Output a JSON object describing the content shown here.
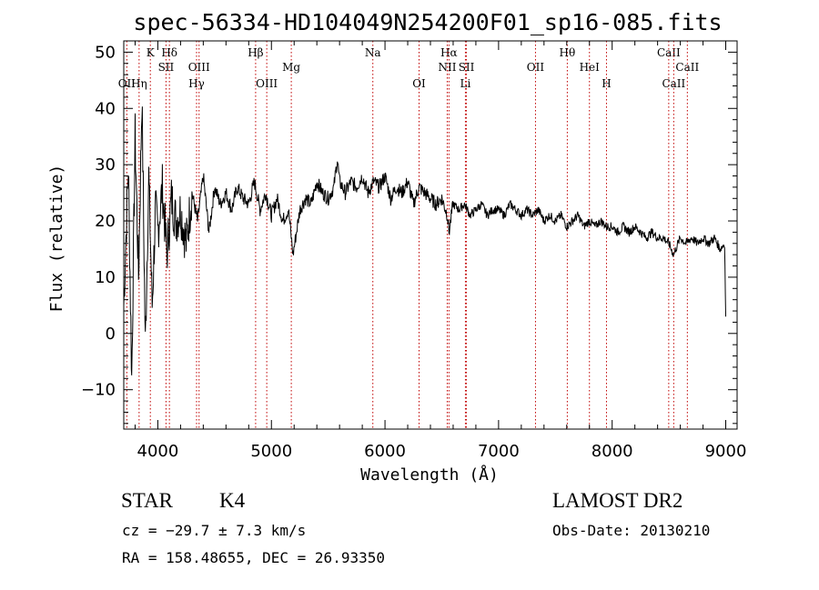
{
  "chart_data": {
    "type": "line",
    "title": "spec-56334-HD104049N254200F01_sp16-085.fits",
    "xlabel": "Wavelength (Å)",
    "ylabel": "Flux (relative)",
    "xlim": [
      3700,
      9100
    ],
    "ylim": [
      -17,
      52
    ],
    "xticks": [
      4000,
      5000,
      6000,
      7000,
      8000,
      9000
    ],
    "yticks": [
      -10,
      0,
      10,
      20,
      30,
      40,
      50
    ],
    "tick_labels_x": [
      "4000",
      "5000",
      "6000",
      "7000",
      "8000",
      "9000"
    ],
    "tick_labels_y": [
      "−10",
      "0",
      "10",
      "20",
      "30",
      "40",
      "50"
    ],
    "series": [
      {
        "name": "spectrum",
        "x": [
          3700,
          3740,
          3770,
          3800,
          3830,
          3860,
          3890,
          3920,
          3950,
          3980,
          4000,
          4040,
          4080,
          4120,
          4160,
          4200,
          4250,
          4300,
          4350,
          4400,
          4450,
          4500,
          4550,
          4600,
          4650,
          4700,
          4750,
          4800,
          4850,
          4900,
          4950,
          5000,
          5050,
          5100,
          5150,
          5190,
          5250,
          5300,
          5350,
          5400,
          5450,
          5500,
          5550,
          5580,
          5600,
          5650,
          5700,
          5750,
          5800,
          5850,
          5900,
          5950,
          6000,
          6050,
          6100,
          6150,
          6200,
          6250,
          6300,
          6350,
          6400,
          6450,
          6500,
          6550,
          6563,
          6600,
          6650,
          6700,
          6750,
          6800,
          6850,
          6900,
          6950,
          7000,
          7050,
          7100,
          7150,
          7200,
          7250,
          7300,
          7350,
          7400,
          7450,
          7500,
          7550,
          7600,
          7650,
          7700,
          7750,
          7800,
          7850,
          7900,
          7950,
          8000,
          8050,
          8100,
          8150,
          8200,
          8250,
          8300,
          8350,
          8400,
          8450,
          8500,
          8540,
          8600,
          8650,
          8700,
          8750,
          8800,
          8850,
          8900,
          8950,
          8990,
          9000
        ],
        "y": [
          5,
          30,
          -8,
          35,
          10,
          42,
          -2,
          28,
          5,
          22,
          18,
          26,
          14,
          24,
          20,
          22,
          16,
          25,
          20,
          28,
          18,
          26,
          23,
          25,
          22,
          26,
          24,
          23,
          27,
          22,
          25,
          21,
          24,
          20,
          22,
          14,
          22,
          24,
          23,
          27,
          25,
          24,
          26,
          31,
          27,
          25,
          27,
          26,
          28,
          25,
          27,
          26,
          28,
          24,
          26,
          25,
          27,
          23,
          26,
          25,
          24,
          23,
          24,
          21,
          18,
          23,
          22,
          23,
          21,
          22,
          23,
          21,
          22,
          22,
          21,
          23,
          22,
          21,
          22,
          21,
          22,
          20,
          21,
          20,
          21,
          19,
          20,
          21,
          19,
          20,
          19,
          20,
          19,
          19,
          18,
          19,
          18,
          19,
          18,
          17,
          18,
          17,
          17,
          16,
          14,
          17,
          16,
          17,
          16,
          17,
          16,
          17,
          15,
          16,
          3
        ]
      }
    ],
    "spectral_lines": [
      {
        "label": "OII",
        "wavelength": 3727,
        "row": 3
      },
      {
        "label": "Hη",
        "wavelength": 3835,
        "row": 3
      },
      {
        "label": "K",
        "wavelength": 3934,
        "row": 1
      },
      {
        "label": "Hδ",
        "wavelength": 4102,
        "row": 1
      },
      {
        "label": "SII",
        "wavelength": 4072,
        "row": 2
      },
      {
        "label": "OIII",
        "wavelength": 4363,
        "row": 2
      },
      {
        "label": "Hγ",
        "wavelength": 4341,
        "row": 3
      },
      {
        "label": "Hβ",
        "wavelength": 4861,
        "row": 1
      },
      {
        "label": "OIII",
        "wavelength": 4959,
        "row": 3
      },
      {
        "label": "Mg",
        "wavelength": 5175,
        "row": 2
      },
      {
        "label": "Na",
        "wavelength": 5893,
        "row": 1
      },
      {
        "label": "OI",
        "wavelength": 6300,
        "row": 3
      },
      {
        "label": "Hα",
        "wavelength": 6563,
        "row": 1
      },
      {
        "label": "NII",
        "wavelength": 6548,
        "row": 2
      },
      {
        "label": "SII",
        "wavelength": 6717,
        "row": 2
      },
      {
        "label": "Li",
        "wavelength": 6708,
        "row": 3
      },
      {
        "label": "OII",
        "wavelength": 7325,
        "row": 2
      },
      {
        "label": "Hθ",
        "wavelength": 7605,
        "row": 1
      },
      {
        "label": "HeI",
        "wavelength": 7800,
        "row": 2
      },
      {
        "label": "H",
        "wavelength": 7950,
        "row": 3
      },
      {
        "label": "CaII",
        "wavelength": 8498,
        "row": 1
      },
      {
        "label": "CaII",
        "wavelength": 8542,
        "row": 3
      },
      {
        "label": "CaII",
        "wavelength": 8662,
        "row": 2
      }
    ]
  },
  "info": {
    "object_class": "STAR",
    "subclass": "K4",
    "survey": "LAMOST DR2",
    "redshift": "cz = −29.7 ± 7.3 km/s",
    "obs_date": "Obs-Date: 20130210",
    "coords": "RA = 158.48655, DEC =  26.93350"
  },
  "colors": {
    "line_marker": "#c00000",
    "spectrum": "#000000"
  }
}
